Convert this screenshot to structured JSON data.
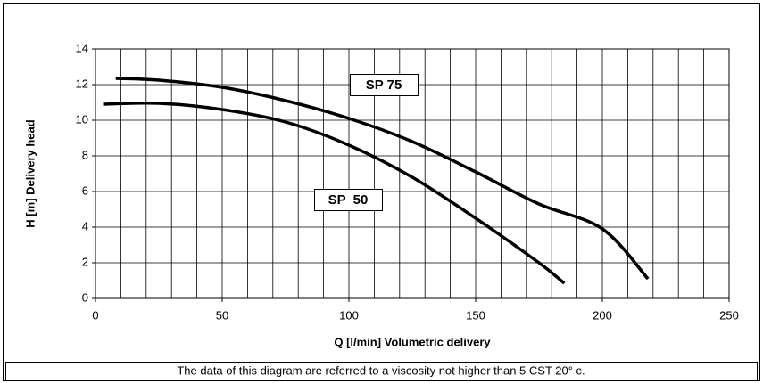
{
  "chart_data": {
    "type": "line",
    "xlabel": "Q [l/min] Volumetric delivery",
    "ylabel": "H [m]  Delivery head",
    "note": "The data of this diagram are referred to a viscosity not higher than 5 CST 20° c.",
    "xlim": [
      0,
      250
    ],
    "ylim": [
      0,
      14
    ],
    "xticks": [
      0,
      50,
      100,
      150,
      200,
      250
    ],
    "yticks": [
      0,
      2,
      4,
      6,
      8,
      10,
      12,
      14
    ],
    "xgrid": [
      0,
      10,
      20,
      30,
      40,
      50,
      60,
      70,
      80,
      90,
      100,
      110,
      120,
      130,
      140,
      150,
      160,
      170,
      180,
      190,
      200,
      210,
      220,
      230,
      240,
      250
    ],
    "grid": true,
    "series": [
      {
        "name": "SP 75",
        "color": "#000000",
        "x": [
          8,
          25,
          50,
          75,
          100,
          125,
          150,
          175,
          200,
          218
        ],
        "values": [
          12.35,
          12.25,
          11.85,
          11.1,
          10.1,
          8.8,
          7.1,
          5.3,
          3.9,
          1.1
        ]
      },
      {
        "name": "SP  50",
        "color": "#000000",
        "x": [
          3,
          25,
          50,
          75,
          100,
          125,
          150,
          175,
          185
        ],
        "values": [
          10.9,
          10.95,
          10.6,
          9.9,
          8.6,
          6.8,
          4.5,
          2.0,
          0.85
        ]
      }
    ]
  }
}
